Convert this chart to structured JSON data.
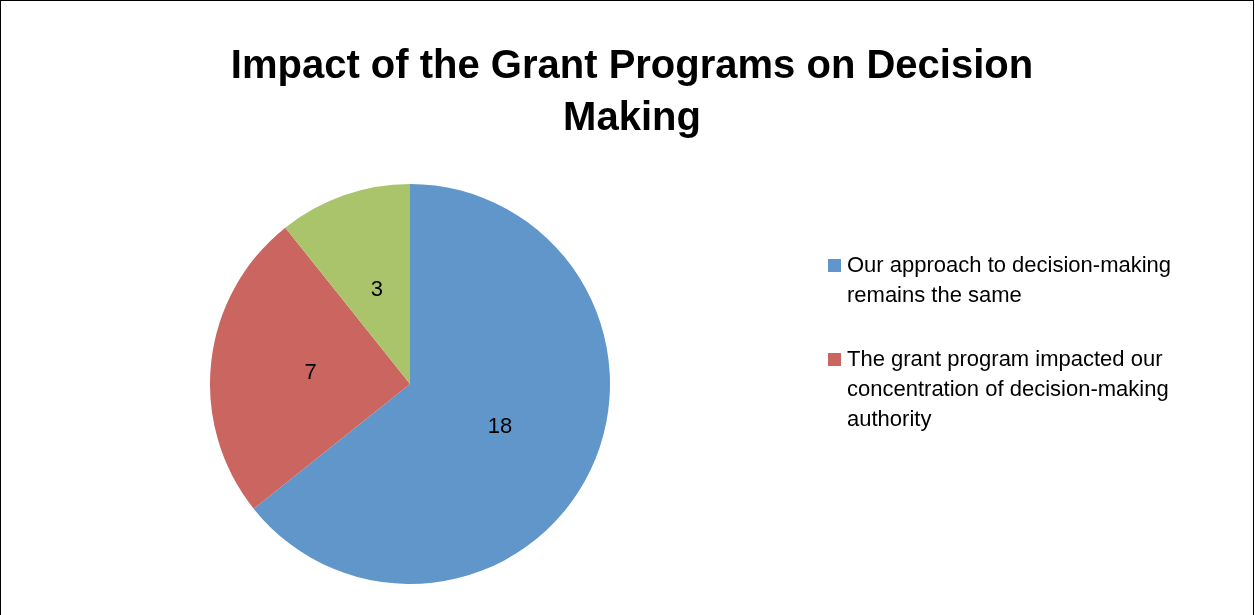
{
  "chart_data": {
    "type": "pie",
    "title": "Impact of the Grant Programs on Decision Making",
    "categories": [
      "Our approach to decision-making remains the same",
      "The grant program impacted our concentration of decision-making authority",
      null
    ],
    "values": [
      18,
      7,
      3
    ],
    "colors": [
      "#6096c9",
      "#cb6560",
      "#a9c46b"
    ],
    "data_labels": true,
    "legend": "right"
  }
}
